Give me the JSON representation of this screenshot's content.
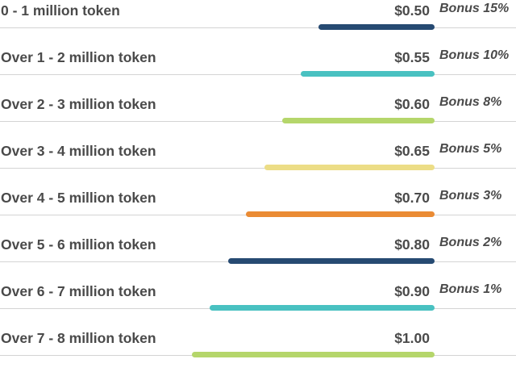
{
  "tiers": [
    {
      "range": "0 - 1 million token",
      "price": "$0.50",
      "bonus": "Bonus 15%",
      "bar_color": "#264a72",
      "level": 1
    },
    {
      "range": "Over 1 - 2 million token",
      "price": "$0.55",
      "bonus": "Bonus 10%",
      "bar_color": "#49c1c1",
      "level": 2
    },
    {
      "range": "Over 2 - 3 million token",
      "price": "$0.60",
      "bonus": "Bonus 8%",
      "bar_color": "#b5d66b",
      "level": 3
    },
    {
      "range": "Over 3 - 4 million token",
      "price": "$0.65",
      "bonus": "Bonus 5%",
      "bar_color": "#ecdd86",
      "level": 4
    },
    {
      "range": "Over 4 - 5 million token",
      "price": "$0.70",
      "bonus": "Bonus 3%",
      "bar_color": "#ea8b34",
      "level": 5
    },
    {
      "range": "Over 5 - 6 million token",
      "price": "$0.80",
      "bonus": "Bonus 2%",
      "bar_color": "#264a72",
      "level": 6
    },
    {
      "range": "Over 6 - 7 million token",
      "price": "$0.90",
      "bonus": "Bonus 1%",
      "bar_color": "#49c1c1",
      "level": 7
    },
    {
      "range": "Over 7 - 8 million token",
      "price": "$1.00",
      "bonus": "",
      "bar_color": "#b5d66b",
      "level": 8
    }
  ]
}
